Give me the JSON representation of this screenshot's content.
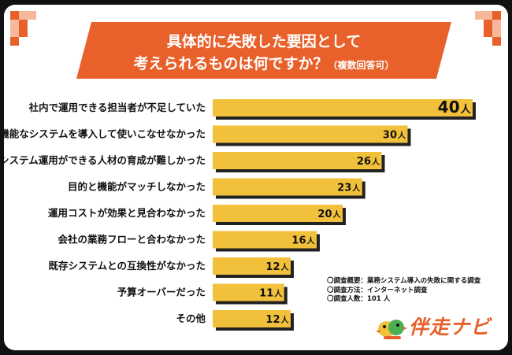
{
  "title": {
    "line1": "具体的に失敗した要因として",
    "line2": "考えられるものは何ですか？",
    "note": "（複数回答可）"
  },
  "chart_data": {
    "type": "bar",
    "orientation": "horizontal",
    "categories": [
      "社内で運用できる担当者が不足していた",
      "多機能なシステムを導入して使いこなせなかった",
      "システム運用ができる人材の育成が難しかった",
      "目的と機能がマッチしなかった",
      "運用コストが効果と見合わなかった",
      "会社の業務フローと合わなかった",
      "既存システムとの互換性がなかった",
      "予算オーバーだった",
      "その他"
    ],
    "values": [
      40,
      30,
      26,
      23,
      20,
      16,
      12,
      11,
      12
    ],
    "unit": "人",
    "bar_color": "#f2c13c",
    "shadow_color": "#222222"
  },
  "notes": [
    "〇調査概要：業務システム導入の失敗に関する調査",
    "〇調査方法：インターネット調査",
    "〇調査人数：101 人"
  ],
  "logo": {
    "text": "伴走ナビ",
    "color": "#e8602a"
  }
}
